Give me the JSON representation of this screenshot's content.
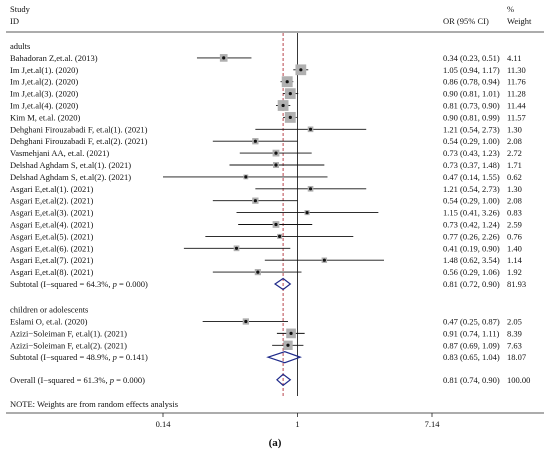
{
  "chart_data": {
    "type": "forest",
    "header": {
      "study_line1": "Study",
      "study_line2": "ID",
      "effect": "OR (95% CI)",
      "weight_line1": "%",
      "weight_line2": "Weight"
    },
    "x_scale": "log",
    "xlim": [
      0.14,
      7.14
    ],
    "x_ticks": [
      {
        "value": 0.14,
        "label": "0.14"
      },
      {
        "value": 1,
        "label": "1"
      },
      {
        "value": 7.14,
        "label": "7.14"
      }
    ],
    "overall_dashed_line": 0.81,
    "groups": [
      {
        "name": "adults",
        "studies": [
          {
            "label": "Bahadoran Z,et.al. (2013)",
            "or": 0.34,
            "lo": 0.23,
            "hi": 0.51,
            "ci_text": "0.34 (0.23, 0.51)",
            "weight": "4.11"
          },
          {
            "label": "Im J,et.al(1). (2020)",
            "or": 1.05,
            "lo": 0.94,
            "hi": 1.17,
            "ci_text": "1.05 (0.94, 1.17)",
            "weight": "11.30"
          },
          {
            "label": "Im J,et.al(2). (2020)",
            "or": 0.86,
            "lo": 0.78,
            "hi": 0.94,
            "ci_text": "0.86 (0.78, 0.94)",
            "weight": "11.76"
          },
          {
            "label": "Im J,et.al(3). (2020)",
            "or": 0.9,
            "lo": 0.81,
            "hi": 1.01,
            "ci_text": "0.90 (0.81, 1.01)",
            "weight": "11.28"
          },
          {
            "label": "Im J,et.al(4). (2020)",
            "or": 0.81,
            "lo": 0.73,
            "hi": 0.9,
            "ci_text": "0.81 (0.73, 0.90)",
            "weight": "11.44"
          },
          {
            "label": "Kim M, et.al. (2020)",
            "or": 0.9,
            "lo": 0.81,
            "hi": 0.99,
            "ci_text": "0.90 (0.81, 0.99)",
            "weight": "11.57"
          },
          {
            "label": "Dehghani Firouzabadi F, et.al(1). (2021)",
            "or": 1.21,
            "lo": 0.54,
            "hi": 2.73,
            "ci_text": "1.21 (0.54, 2.73)",
            "weight": "1.30"
          },
          {
            "label": "Dehghani Firouzabadi F, et.al(2). (2021)",
            "or": 0.54,
            "lo": 0.29,
            "hi": 1.0,
            "ci_text": "0.54 (0.29, 1.00)",
            "weight": "2.08"
          },
          {
            "label": "Vasmehjani AA, et.al. (2021)",
            "or": 0.73,
            "lo": 0.43,
            "hi": 1.23,
            "ci_text": "0.73 (0.43, 1.23)",
            "weight": "2.72"
          },
          {
            "label": "Delshad Aghdam S, et.al(1). (2021)",
            "or": 0.73,
            "lo": 0.37,
            "hi": 1.48,
            "ci_text": "0.73 (0.37, 1.48)",
            "weight": "1.71"
          },
          {
            "label": "Delshad Aghdam S, et.al(2). (2021)",
            "or": 0.47,
            "lo": 0.14,
            "hi": 1.55,
            "ci_text": "0.47 (0.14, 1.55)",
            "weight": "0.62"
          },
          {
            "label": "Asgari E,et.al(1). (2021)",
            "or": 1.21,
            "lo": 0.54,
            "hi": 2.73,
            "ci_text": "1.21 (0.54, 2.73)",
            "weight": "1.30"
          },
          {
            "label": "Asgari E,et.al(2). (2021)",
            "or": 0.54,
            "lo": 0.29,
            "hi": 1.0,
            "ci_text": "0.54 (0.29, 1.00)",
            "weight": "2.08"
          },
          {
            "label": "Asgari E,et.al(3). (2021)",
            "or": 1.15,
            "lo": 0.41,
            "hi": 3.26,
            "ci_text": "1.15 (0.41, 3.26)",
            "weight": "0.83"
          },
          {
            "label": "Asgari E,et.al(4). (2021)",
            "or": 0.73,
            "lo": 0.42,
            "hi": 1.24,
            "ci_text": "0.73 (0.42, 1.24)",
            "weight": "2.59"
          },
          {
            "label": "Asgari E,et.al(5). (2021)",
            "or": 0.77,
            "lo": 0.26,
            "hi": 2.26,
            "ci_text": "0.77 (0.26, 2.26)",
            "weight": "0.76"
          },
          {
            "label": "Asgari E,et.al(6). (2021)",
            "or": 0.41,
            "lo": 0.19,
            "hi": 0.9,
            "ci_text": "0.41 (0.19, 0.90)",
            "weight": "1.40"
          },
          {
            "label": "Asgari E,et.al(7). (2021)",
            "or": 1.48,
            "lo": 0.62,
            "hi": 3.54,
            "ci_text": "1.48 (0.62, 3.54)",
            "weight": "1.14"
          },
          {
            "label": "Asgari E,et.al(8). (2021)",
            "or": 0.56,
            "lo": 0.29,
            "hi": 1.06,
            "ci_text": "0.56 (0.29, 1.06)",
            "weight": "1.92"
          }
        ],
        "subtotal": {
          "label_prefix": "Subtotal  (I−squared = 64.3%, ",
          "p_symbol": "p",
          "label_suffix": " = 0.000)",
          "or": 0.81,
          "lo": 0.72,
          "hi": 0.9,
          "ci_text": "0.81 (0.72, 0.90)",
          "weight": "81.93"
        }
      },
      {
        "name": "children or adolescents",
        "studies": [
          {
            "label": "Eslami O, et.al. (2020)",
            "or": 0.47,
            "lo": 0.25,
            "hi": 0.87,
            "ci_text": "0.47 (0.25, 0.87)",
            "weight": "2.05"
          },
          {
            "label": "Azizi−Soleiman F, et.al(1). (2021)",
            "or": 0.91,
            "lo": 0.74,
            "hi": 1.11,
            "ci_text": "0.91 (0.74, 1.11)",
            "weight": "8.39"
          },
          {
            "label": "Azizi−Soleiman F, et.al(2). (2021)",
            "or": 0.87,
            "lo": 0.69,
            "hi": 1.09,
            "ci_text": "0.87 (0.69, 1.09)",
            "weight": "7.63"
          }
        ],
        "subtotal": {
          "label_prefix": "Subtotal  (I−squared = 48.9%, ",
          "p_symbol": "p",
          "label_suffix": " = 0.141)",
          "or": 0.83,
          "lo": 0.65,
          "hi": 1.04,
          "ci_text": "0.83 (0.65, 1.04)",
          "weight": "18.07"
        }
      }
    ],
    "overall": {
      "label_prefix": "Overall  (I−squared = 61.3%, ",
      "p_symbol": "p",
      "label_suffix": " = 0.000)",
      "or": 0.81,
      "lo": 0.74,
      "hi": 0.9,
      "ci_text": "0.81 (0.74, 0.90)",
      "weight": "100.00"
    },
    "note": "NOTE: Weights are from random effects analysis",
    "panel_label": "(a)",
    "colors": {
      "marker_box": "#b0b0b0",
      "diamond": "#1f2a8a",
      "dashed_line": "#b0303a",
      "axis": "#222222"
    }
  }
}
